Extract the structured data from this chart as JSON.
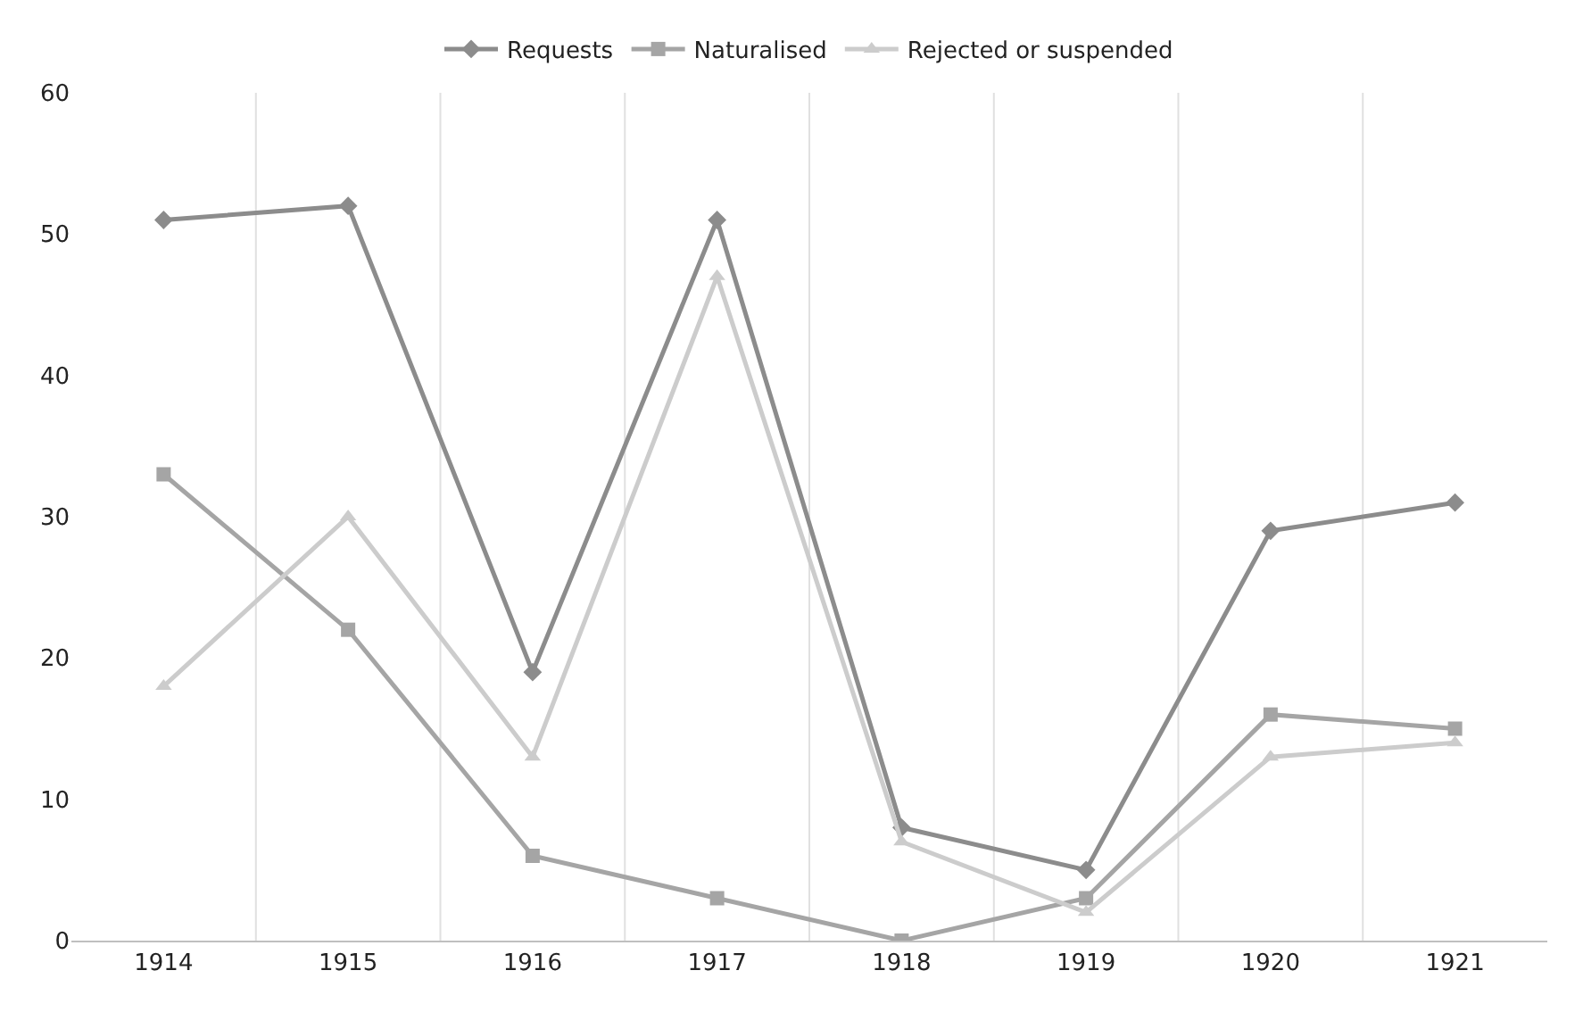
{
  "chart_data": {
    "type": "line",
    "categories": [
      "1914",
      "1915",
      "1916",
      "1917",
      "1918",
      "1919",
      "1920",
      "1921"
    ],
    "series": [
      {
        "name": "Requests",
        "color": "#8c8c8c",
        "marker": "diamond",
        "values": [
          51,
          52,
          19,
          51,
          8,
          5,
          29,
          31
        ]
      },
      {
        "name": "Naturalised",
        "color": "#a5a5a5",
        "marker": "square",
        "values": [
          33,
          22,
          6,
          3,
          0,
          3,
          16,
          15
        ]
      },
      {
        "name": "Rejected or suspended",
        "color": "#cccccc",
        "marker": "triangle",
        "values": [
          18,
          30,
          13,
          47,
          7,
          2,
          13,
          14
        ]
      }
    ],
    "ylim": [
      0,
      60
    ],
    "yticks": [
      0,
      10,
      20,
      30,
      40,
      50,
      60
    ],
    "grid": "x",
    "legend": "top",
    "line_style": "solid"
  }
}
